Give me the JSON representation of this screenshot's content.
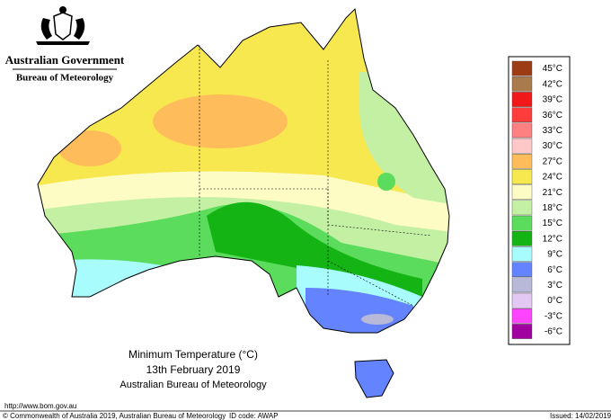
{
  "header": {
    "government": "Australian Government",
    "bureau": "Bureau of Meteorology"
  },
  "legend": {
    "items": [
      {
        "label": "45°C",
        "color": "#9c3c14"
      },
      {
        "label": "42°C",
        "color": "#a87a4c"
      },
      {
        "label": "39°C",
        "color": "#f01818"
      },
      {
        "label": "36°C",
        "color": "#ff3c3c"
      },
      {
        "label": "33°C",
        "color": "#ff8080"
      },
      {
        "label": "30°C",
        "color": "#ffc8c8"
      },
      {
        "label": "27°C",
        "color": "#ffbc5a"
      },
      {
        "label": "24°C",
        "color": "#f8e850"
      },
      {
        "label": "21°C",
        "color": "#fcfcc4"
      },
      {
        "label": "18°C",
        "color": "#c4f0a4"
      },
      {
        "label": "15°C",
        "color": "#5cdc5c"
      },
      {
        "label": "12°C",
        "color": "#14b414"
      },
      {
        "label": "9°C",
        "color": "#a8fcfc"
      },
      {
        "label": "6°C",
        "color": "#6484ff"
      },
      {
        "label": "3°C",
        "color": "#b8b8d8"
      },
      {
        "label": "0°C",
        "color": "#e4c8f4"
      },
      {
        "label": "-3°C",
        "color": "#ff44ff"
      },
      {
        "label": "-6°C",
        "color": "#a000a0"
      }
    ]
  },
  "caption": {
    "title": "Minimum Temperature (°C)",
    "date": "13th February 2019",
    "source": "Australian Bureau of Meteorology"
  },
  "footer": {
    "url": "http://www.bom.gov.au",
    "copyright": "© Commonwealth of Australia 2019, Australian Bureau of Meteorology",
    "id_code": "ID code: AWAP",
    "issued": "Issued: 14/02/2019"
  }
}
